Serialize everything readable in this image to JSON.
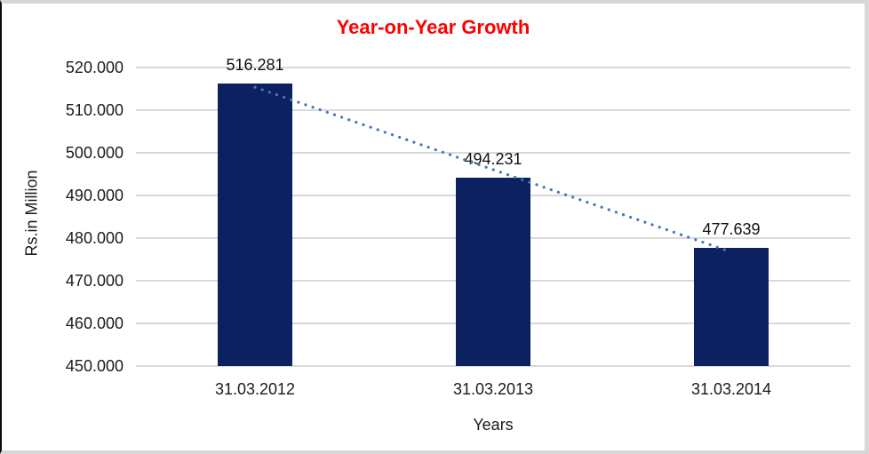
{
  "chart_data": {
    "type": "bar",
    "title": "Year-on-Year Growth",
    "title_color": "#ff0000",
    "xlabel": "Years",
    "ylabel": "Rs.in Million",
    "categories": [
      "31.03.2012",
      "31.03.2013",
      "31.03.2014"
    ],
    "values": [
      516.281,
      494.231,
      477.639
    ],
    "data_labels": [
      "516.281",
      "494.231",
      "477.639"
    ],
    "ylim": [
      450,
      520
    ],
    "ytick_step": 10,
    "ytick_labels": [
      "450.000",
      "460.000",
      "470.000",
      "480.000",
      "490.000",
      "500.000",
      "510.000",
      "520.000"
    ],
    "grid": true,
    "gridline_color": "#d9d9d9",
    "legend": "none",
    "bar_color": "#0b2160",
    "trendline": {
      "type": "linear",
      "style": "dotted",
      "color": "#4377bd"
    }
  }
}
